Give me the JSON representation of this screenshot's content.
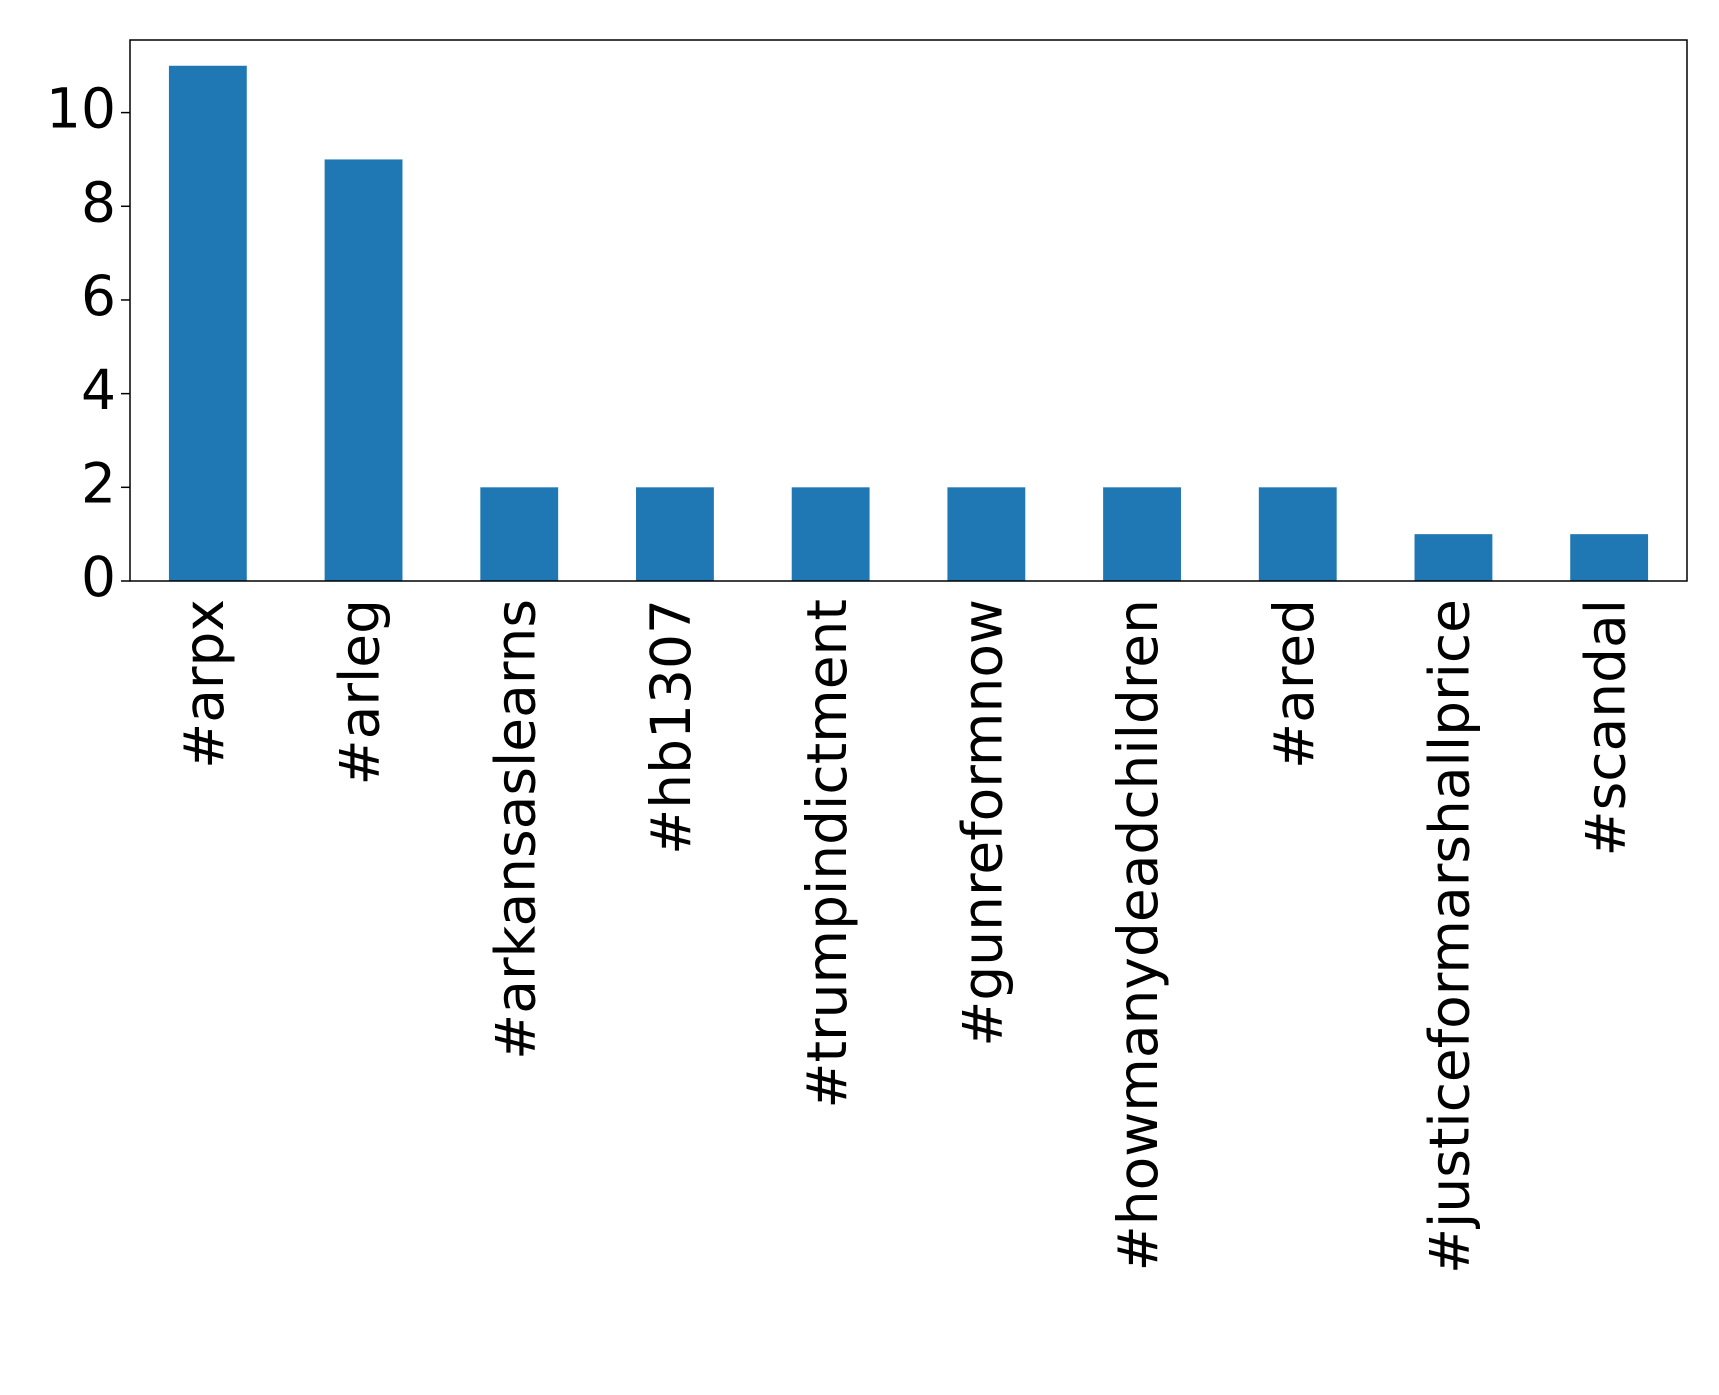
{
  "chart_data": {
    "type": "bar",
    "categories": [
      "#arpx",
      "#arleg",
      "#arkansaslearns",
      "#hb1307",
      "#trumpindictment",
      "#gunreformnow",
      "#howmanydeadchildren",
      "#ared",
      "#justiceformarshallprice",
      "#scandal"
    ],
    "values": [
      11,
      9,
      2,
      2,
      2,
      2,
      2,
      2,
      1,
      1
    ],
    "color": "#1f77b4",
    "ylim": [
      0,
      11.55
    ],
    "yticks": [
      0,
      2,
      4,
      6,
      8,
      10
    ],
    "grid": false
  }
}
